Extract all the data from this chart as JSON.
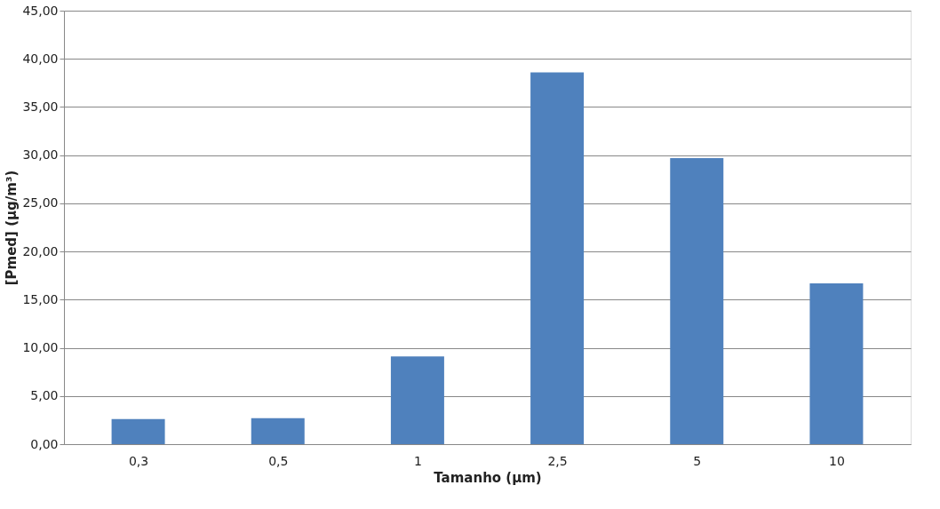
{
  "chart_data": {
    "type": "bar",
    "xlabel": "Tamanho (µm)",
    "ylabel": "[Pmed] (µg/m³)",
    "categories": [
      "0,3",
      "0,5",
      "1",
      "2,5",
      "5",
      "10"
    ],
    "series": [
      {
        "color": "#4f81bd",
        "values": [
          2.6,
          2.7,
          9.1,
          38.6,
          29.7,
          16.7
        ]
      }
    ],
    "ylim": [
      0,
      45
    ],
    "yticks": [
      {
        "value": 0,
        "label": "0,00"
      },
      {
        "value": 5,
        "label": "5,00"
      },
      {
        "value": 10,
        "label": "10,00"
      },
      {
        "value": 15,
        "label": "15,00"
      },
      {
        "value": 20,
        "label": "20,00"
      },
      {
        "value": 25,
        "label": "25,00"
      },
      {
        "value": 30,
        "label": "30,00"
      },
      {
        "value": 35,
        "label": "35,00"
      },
      {
        "value": 40,
        "label": "40,00"
      },
      {
        "value": 45,
        "label": "45,00"
      }
    ],
    "grid": "y"
  }
}
